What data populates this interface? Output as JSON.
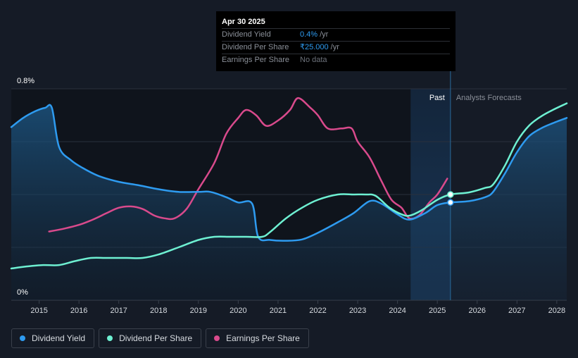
{
  "chart_data": {
    "type": "line",
    "y_axis": {
      "min": 0,
      "max": 0.8,
      "labels": [
        "0.8%",
        "0%"
      ]
    },
    "x_axis": {
      "min": 2014.3,
      "max": 2028.25,
      "ticks": [
        "2015",
        "2016",
        "2017",
        "2018",
        "2019",
        "2020",
        "2021",
        "2022",
        "2023",
        "2024",
        "2025",
        "2026",
        "2027",
        "2028"
      ]
    },
    "regions": {
      "past_label": "Past",
      "forecast_label": "Analysts Forecasts",
      "divider_x": 2025.33,
      "highlight_start": 2024.33
    },
    "series": [
      {
        "name": "Dividend Yield",
        "color": "#2e9bf0",
        "filled": true,
        "points": [
          [
            2014.3,
            0.655
          ],
          [
            2014.6,
            0.69
          ],
          [
            2014.9,
            0.715
          ],
          [
            2015.15,
            0.728
          ],
          [
            2015.32,
            0.728
          ],
          [
            2015.5,
            0.58
          ],
          [
            2015.8,
            0.53
          ],
          [
            2016.1,
            0.5
          ],
          [
            2016.5,
            0.47
          ],
          [
            2017.0,
            0.448
          ],
          [
            2017.5,
            0.435
          ],
          [
            2018.0,
            0.42
          ],
          [
            2018.5,
            0.41
          ],
          [
            2019.0,
            0.41
          ],
          [
            2019.3,
            0.41
          ],
          [
            2019.7,
            0.39
          ],
          [
            2020.0,
            0.37
          ],
          [
            2020.35,
            0.365
          ],
          [
            2020.5,
            0.24
          ],
          [
            2020.8,
            0.228
          ],
          [
            2021.2,
            0.225
          ],
          [
            2021.6,
            0.23
          ],
          [
            2022.0,
            0.255
          ],
          [
            2022.5,
            0.295
          ],
          [
            2022.9,
            0.33
          ],
          [
            2023.3,
            0.375
          ],
          [
            2023.6,
            0.365
          ],
          [
            2024.0,
            0.325
          ],
          [
            2024.3,
            0.305
          ],
          [
            2024.7,
            0.33
          ],
          [
            2025.0,
            0.36
          ],
          [
            2025.33,
            0.37
          ],
          [
            2025.8,
            0.375
          ],
          [
            2026.2,
            0.39
          ],
          [
            2026.4,
            0.41
          ],
          [
            2026.7,
            0.48
          ],
          [
            2027.0,
            0.56
          ],
          [
            2027.3,
            0.62
          ],
          [
            2027.6,
            0.65
          ],
          [
            2027.9,
            0.67
          ],
          [
            2028.25,
            0.69
          ]
        ]
      },
      {
        "name": "Dividend Per Share",
        "color": "#6ef0d2",
        "filled": false,
        "points": [
          [
            2014.3,
            0.12
          ],
          [
            2014.7,
            0.128
          ],
          [
            2015.1,
            0.133
          ],
          [
            2015.5,
            0.133
          ],
          [
            2015.9,
            0.148
          ],
          [
            2016.3,
            0.16
          ],
          [
            2016.7,
            0.16
          ],
          [
            2017.2,
            0.16
          ],
          [
            2017.6,
            0.16
          ],
          [
            2018.0,
            0.173
          ],
          [
            2018.5,
            0.2
          ],
          [
            2019.0,
            0.228
          ],
          [
            2019.4,
            0.24
          ],
          [
            2019.8,
            0.24
          ],
          [
            2020.2,
            0.24
          ],
          [
            2020.6,
            0.24
          ],
          [
            2020.8,
            0.258
          ],
          [
            2021.2,
            0.31
          ],
          [
            2021.6,
            0.35
          ],
          [
            2022.0,
            0.38
          ],
          [
            2022.5,
            0.4
          ],
          [
            2022.9,
            0.4
          ],
          [
            2023.2,
            0.4
          ],
          [
            2023.45,
            0.395
          ],
          [
            2023.8,
            0.35
          ],
          [
            2024.1,
            0.325
          ],
          [
            2024.3,
            0.32
          ],
          [
            2024.6,
            0.34
          ],
          [
            2025.0,
            0.38
          ],
          [
            2025.33,
            0.4
          ],
          [
            2025.8,
            0.408
          ],
          [
            2026.2,
            0.425
          ],
          [
            2026.4,
            0.438
          ],
          [
            2026.7,
            0.51
          ],
          [
            2027.0,
            0.6
          ],
          [
            2027.3,
            0.66
          ],
          [
            2027.6,
            0.695
          ],
          [
            2027.9,
            0.72
          ],
          [
            2028.25,
            0.745
          ]
        ]
      },
      {
        "name": "Earnings Per Share",
        "color": "#d94a8c",
        "filled": false,
        "points": [
          [
            2015.25,
            0.26
          ],
          [
            2015.6,
            0.27
          ],
          [
            2016.0,
            0.285
          ],
          [
            2016.35,
            0.305
          ],
          [
            2016.7,
            0.33
          ],
          [
            2017.0,
            0.35
          ],
          [
            2017.3,
            0.355
          ],
          [
            2017.6,
            0.345
          ],
          [
            2017.9,
            0.32
          ],
          [
            2018.15,
            0.31
          ],
          [
            2018.4,
            0.31
          ],
          [
            2018.7,
            0.345
          ],
          [
            2019.0,
            0.42
          ],
          [
            2019.4,
            0.52
          ],
          [
            2019.7,
            0.63
          ],
          [
            2020.0,
            0.69
          ],
          [
            2020.2,
            0.72
          ],
          [
            2020.45,
            0.7
          ],
          [
            2020.7,
            0.66
          ],
          [
            2021.0,
            0.68
          ],
          [
            2021.3,
            0.72
          ],
          [
            2021.5,
            0.765
          ],
          [
            2021.8,
            0.73
          ],
          [
            2022.0,
            0.7
          ],
          [
            2022.25,
            0.65
          ],
          [
            2022.6,
            0.65
          ],
          [
            2022.85,
            0.65
          ],
          [
            2023.0,
            0.6
          ],
          [
            2023.3,
            0.54
          ],
          [
            2023.6,
            0.45
          ],
          [
            2023.85,
            0.38
          ],
          [
            2024.1,
            0.35
          ],
          [
            2024.3,
            0.31
          ],
          [
            2024.55,
            0.322
          ],
          [
            2024.8,
            0.37
          ],
          [
            2025.0,
            0.4
          ],
          [
            2025.25,
            0.46
          ]
        ]
      }
    ],
    "tooltip": {
      "date": "Apr 30 2025",
      "rows": [
        {
          "name": "Dividend Yield",
          "value": "0.4%",
          "unit": "/yr"
        },
        {
          "name": "Dividend Per Share",
          "value": "₹25.000",
          "unit": "/yr"
        },
        {
          "name": "Earnings Per Share",
          "no_data": "No data"
        }
      ]
    },
    "markers": [
      {
        "series": "Dividend Per Share",
        "x": 2025.33,
        "y": 0.4
      },
      {
        "series": "Dividend Yield",
        "x": 2025.33,
        "y": 0.37
      }
    ],
    "legend": [
      {
        "label": "Dividend Yield",
        "color": "#2e9bf0"
      },
      {
        "label": "Dividend Per Share",
        "color": "#6ef0d2"
      },
      {
        "label": "Earnings Per Share",
        "color": "#d94a8c"
      }
    ]
  }
}
